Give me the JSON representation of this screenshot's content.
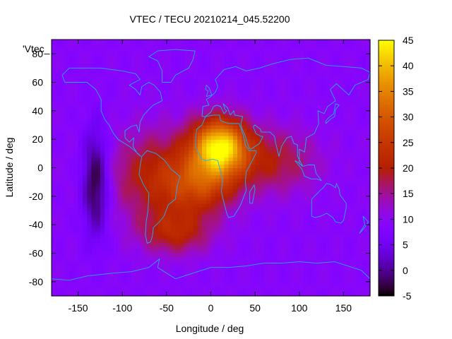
{
  "chart_data": {
    "type": "heatmap",
    "title": "VTEC / TECU 20210214_045.52200",
    "xlabel": "Longitude / deg",
    "ylabel": "Latitude / deg",
    "key_label": "'Vtec_",
    "xlim": [
      -180,
      180
    ],
    "ylim": [
      -90,
      90
    ],
    "x_ticks": [
      -150,
      -100,
      -50,
      0,
      50,
      100,
      150
    ],
    "y_ticks": [
      -80,
      -60,
      -40,
      -20,
      0,
      20,
      40,
      60,
      80
    ],
    "colorbar": {
      "min": -5,
      "max": 45,
      "ticks": [
        -5,
        0,
        5,
        10,
        15,
        20,
        25,
        30,
        35,
        40,
        45
      ],
      "palette": "gnuplot-heat"
    },
    "background_level": 9,
    "features": [
      {
        "name": "equatorial-anomaly-peak",
        "lon": 10,
        "lat": 15,
        "value": 42
      },
      {
        "name": "equatorial-anomaly-south",
        "lon": -10,
        "lat": -12,
        "value": 26
      },
      {
        "name": "south-america-band",
        "lon": -60,
        "lat": -5,
        "value": 24
      },
      {
        "name": "indian-ocean-band",
        "lon": 70,
        "lat": 5,
        "value": 20
      },
      {
        "name": "south-atlantic-cell",
        "lon": -40,
        "lat": -45,
        "value": 24
      },
      {
        "name": "pacific-minimum",
        "lon": -130,
        "lat": -10,
        "value": -5
      }
    ]
  }
}
